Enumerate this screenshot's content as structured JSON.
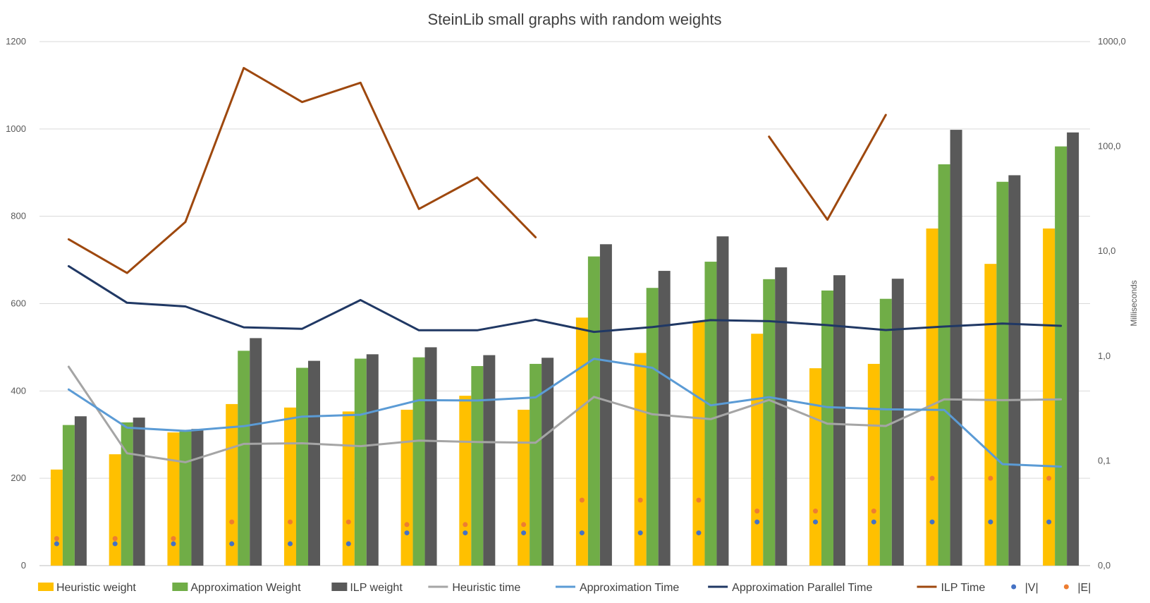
{
  "chart_data": {
    "type": "bar+line",
    "title": "SteinLib small graphs with random weights",
    "y_left": {
      "min": 0,
      "max": 1200,
      "ticks": [
        "0",
        "200",
        "400",
        "600",
        "800",
        "1000",
        "1200"
      ]
    },
    "y_right": {
      "label": "Milliseconds",
      "scale": "log",
      "ticks": [
        "0,0",
        "0,1",
        "1,0",
        "10,0",
        "100,0",
        "1000,0"
      ]
    },
    "grid": true,
    "legend_position": "bottom",
    "category_count": 18,
    "bar_series": [
      {
        "name": "Heuristic weight",
        "color": "#FFC000",
        "values": [
          220,
          255,
          305,
          370,
          362,
          353,
          357,
          389,
          357,
          568,
          487,
          560,
          531,
          452,
          462,
          772,
          691,
          772
        ]
      },
      {
        "name": "Approximation Weight",
        "color": "#70AD47",
        "values": [
          322,
          328,
          311,
          492,
          453,
          474,
          477,
          457,
          462,
          708,
          636,
          696,
          656,
          630,
          611,
          919,
          879,
          960
        ]
      },
      {
        "name": "ILP weight",
        "color": "#595959",
        "values": [
          342,
          339,
          313,
          521,
          469,
          484,
          500,
          482,
          476,
          736,
          675,
          754,
          683,
          665,
          657,
          998,
          894,
          992
        ]
      }
    ],
    "line_series": [
      {
        "name": "Heuristic time",
        "color": "#A5A5A5",
        "values": [
          0.79,
          0.118,
          0.097,
          0.145,
          0.147,
          0.138,
          0.156,
          0.151,
          0.149,
          0.407,
          0.278,
          0.25,
          0.381,
          0.226,
          0.215,
          0.386,
          0.379,
          0.386
        ]
      },
      {
        "name": "Approximation Time",
        "color": "#5B9BD5",
        "values": [
          0.48,
          0.207,
          0.193,
          0.214,
          0.264,
          0.275,
          0.379,
          0.376,
          0.403,
          0.941,
          0.772,
          0.338,
          0.405,
          0.325,
          0.31,
          0.306,
          0.093,
          0.088
        ]
      },
      {
        "name": "Approximation Parallel Time",
        "color": "#203864",
        "values": [
          7.2,
          3.22,
          2.97,
          1.88,
          1.82,
          3.42,
          1.76,
          1.76,
          2.22,
          1.7,
          1.89,
          2.2,
          2.15,
          1.97,
          1.77,
          1.91,
          2.04,
          1.94
        ]
      },
      {
        "name": "ILP Time",
        "color": "#9E480E",
        "values": [
          13.0,
          6.2,
          19.0,
          560,
          265,
          405,
          25.3,
          50.5,
          13.6,
          null,
          null,
          null,
          124,
          20.0,
          200,
          null,
          null,
          null
        ]
      }
    ],
    "point_series": [
      {
        "name": "|V|",
        "color": "#4472C4",
        "values": [
          50,
          50,
          50,
          50,
          50,
          50,
          75,
          75,
          75,
          75,
          75,
          75,
          100,
          100,
          100,
          100,
          100,
          100
        ]
      },
      {
        "name": "|E|",
        "color": "#ED7D31",
        "values": [
          62,
          62,
          62,
          100,
          100,
          100,
          94,
          94,
          94,
          150,
          150,
          150,
          125,
          125,
          125,
          200,
          200,
          200
        ]
      }
    ]
  }
}
